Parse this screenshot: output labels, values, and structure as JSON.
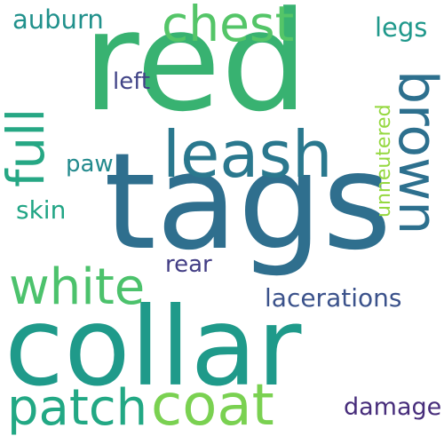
{
  "background": "#ffffff",
  "words": [
    {
      "key": "red",
      "text": "red",
      "color": "#38b271"
    },
    {
      "key": "tags",
      "text": "tags",
      "color": "#2f6f8e"
    },
    {
      "key": "collar",
      "text": "collar",
      "color": "#1f9a8a"
    },
    {
      "key": "coat",
      "text": "coat",
      "color": "#7ad151"
    },
    {
      "key": "patch",
      "text": "patch",
      "color": "#22a884"
    },
    {
      "key": "white",
      "text": "white",
      "color": "#4cc26c"
    },
    {
      "key": "leash",
      "text": "leash",
      "color": "#2a788e"
    },
    {
      "key": "chest",
      "text": "chest",
      "color": "#54c568"
    },
    {
      "key": "brown",
      "text": "brown",
      "color": "#2d708e"
    },
    {
      "key": "full",
      "text": "full",
      "color": "#26a784"
    },
    {
      "key": "auburn",
      "text": "auburn",
      "color": "#21918c"
    },
    {
      "key": "lacerations",
      "text": "lacerations",
      "color": "#3b528b"
    },
    {
      "key": "legs",
      "text": "legs",
      "color": "#1f988b"
    },
    {
      "key": "left",
      "text": "left",
      "color": "#414487"
    },
    {
      "key": "paw",
      "text": "paw",
      "color": "#238a8d"
    },
    {
      "key": "skin",
      "text": "skin",
      "color": "#21a585"
    },
    {
      "key": "rear",
      "text": "rear",
      "color": "#433e85"
    },
    {
      "key": "damage",
      "text": "damage",
      "color": "#472d7b"
    },
    {
      "key": "unneutered",
      "text": "unneutered",
      "color": "#95d840"
    }
  ]
}
